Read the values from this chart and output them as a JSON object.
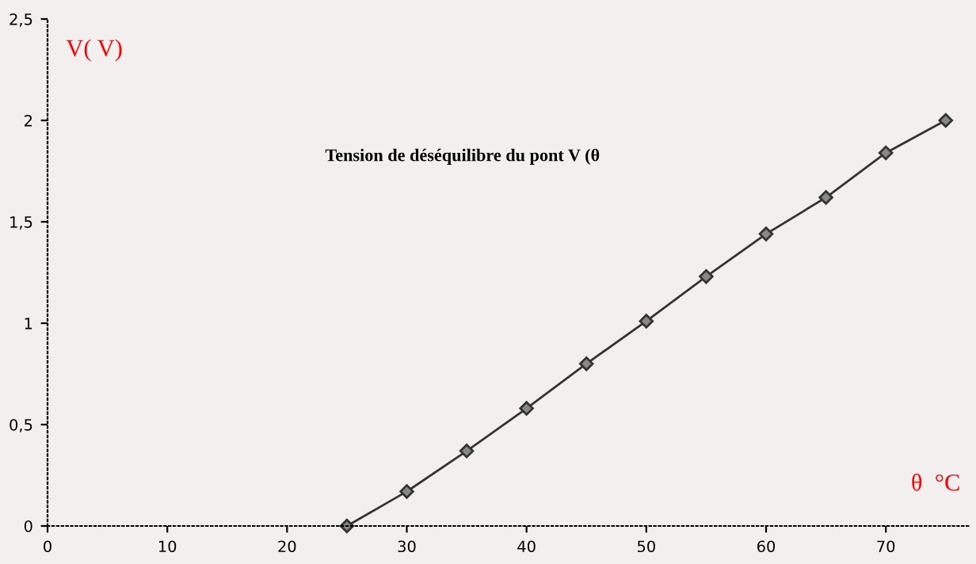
{
  "chart_data": {
    "type": "line",
    "title": "Tension de déséquilibre du pont V (θ",
    "ylabel": "V( V)",
    "xlabel": "θ  °C",
    "x": [
      25,
      30,
      35,
      40,
      45,
      50,
      55,
      60,
      65,
      70,
      75
    ],
    "series": [
      {
        "color": "#333333",
        "values": [
          0,
          0.17,
          0.37,
          0.58,
          0.8,
          1.01,
          1.23,
          1.44,
          1.62,
          1.84,
          2.0
        ]
      }
    ],
    "marker": "diamond",
    "line_style": "solid",
    "grid": false,
    "legend": false,
    "xlim": [
      0,
      77
    ],
    "ylim": [
      0,
      2.5
    ],
    "xticks": [
      0,
      10,
      20,
      30,
      40,
      50,
      60,
      70
    ],
    "yticks": [
      0,
      {
        "value": 0.5,
        "label": "0,5"
      },
      1,
      {
        "value": 1.5,
        "label": "1,5"
      },
      2,
      {
        "value": 2.5,
        "label": "2,5"
      }
    ]
  }
}
